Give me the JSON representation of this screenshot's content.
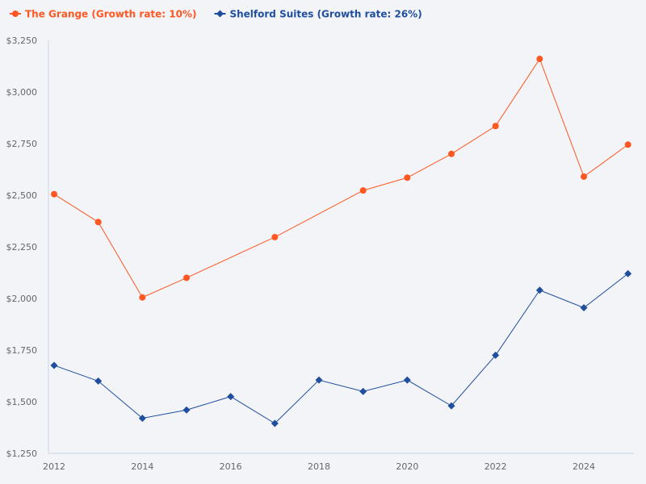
{
  "chart_data": {
    "type": "line",
    "title": "",
    "xlabel": "",
    "ylabel": "",
    "x": [
      2012,
      2013,
      2014,
      2015,
      2016,
      2017,
      2018,
      2019,
      2020,
      2021,
      2022,
      2023,
      2024,
      2025
    ],
    "xlim": [
      2012,
      2025
    ],
    "ylim": [
      1250,
      3250
    ],
    "x_ticks": [
      "2012",
      "2014",
      "2016",
      "2018",
      "2020",
      "2022",
      "2024"
    ],
    "y_ticks": [
      "$1,250",
      "$1,500",
      "$1,750",
      "$2,000",
      "$2,250",
      "$2,500",
      "$2,750",
      "$3,000",
      "$3,250"
    ],
    "grid": false,
    "legend_position": "top-left",
    "series": [
      {
        "name": "The Grange (Growth rate: 10%)",
        "color": "#ff5722",
        "marker": "circle",
        "values": [
          2505,
          2370,
          2005,
          2100,
          null,
          2297,
          null,
          2523,
          2585,
          2700,
          2835,
          3160,
          2590,
          2745
        ]
      },
      {
        "name": "Shelford Suites (Growth rate: 26%)",
        "color": "#1f4e9e",
        "marker": "diamond",
        "values": [
          1676,
          1600,
          1420,
          1460,
          1525,
          1395,
          1605,
          1550,
          1605,
          1480,
          1725,
          2040,
          1955,
          2120
        ]
      }
    ]
  }
}
